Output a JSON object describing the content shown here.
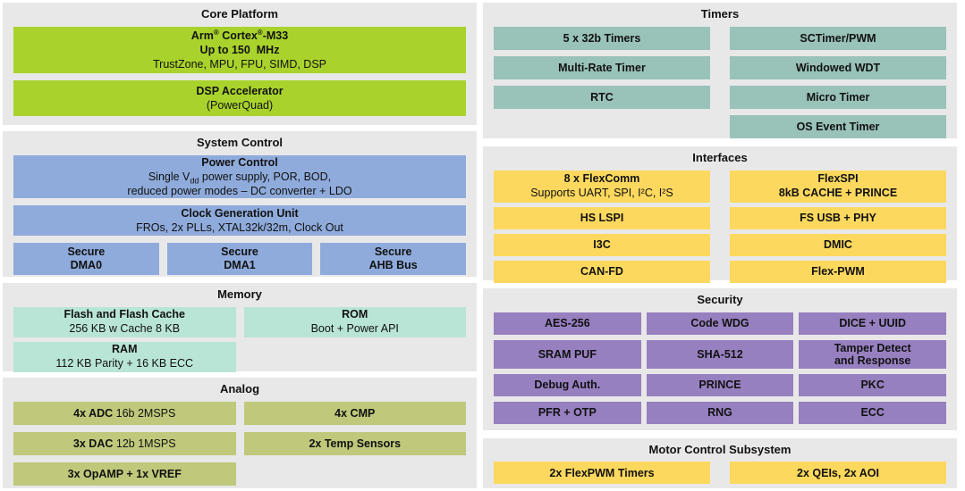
{
  "colors": {
    "page_bg": "#ffffff",
    "section_bg": "#e8e8e8",
    "text": "#111111",
    "green": "#a9d32c",
    "blue": "#8fabdb",
    "mint": "#b9e5d6",
    "teal": "#99c2b9",
    "yellow": "#fcd85e",
    "purple": "#9780c0",
    "olive": "#c0c87b"
  },
  "core_platform": {
    "title": "Core Platform",
    "cpu": {
      "l1_a": "Arm",
      "l1_r1": "®",
      "l1_b": " Cortex",
      "l1_r2": "®",
      "l1_c": "-M33",
      "line2": "Up to 150  MHz",
      "line3": "TrustZone, MPU, FPU, SIMD, DSP"
    },
    "dsp": {
      "line1": "DSP Accelerator",
      "line2": "(PowerQuad)"
    }
  },
  "system_control": {
    "title": "System Control",
    "power": {
      "line1": "Power Control",
      "line2_pre": "Single V",
      "line2_sub": "dd",
      "line2_post": " power supply, POR, BOD,",
      "line3": "reduced power modes – DC converter + LDO"
    },
    "clock": {
      "line1": "Clock Generation Unit",
      "line2": "FROs, 2x PLLs, XTAL32k/32m, Clock Out"
    },
    "dma0": {
      "line1": "Secure",
      "line2": "DMA0"
    },
    "dma1": {
      "line1": "Secure",
      "line2": "DMA1"
    },
    "ahb": {
      "line1": "Secure",
      "line2": "AHB Bus"
    }
  },
  "memory": {
    "title": "Memory",
    "flash": {
      "line1": "Flash and Flash Cache",
      "line2": "256 KB w Cache 8 KB"
    },
    "rom": {
      "line1": "ROM",
      "line2": "Boot + Power API"
    },
    "ram": {
      "line1": "RAM",
      "line2": "112 KB Parity + 16 KB ECC"
    }
  },
  "analog": {
    "title": "Analog",
    "adc": {
      "bold": "4x ADC",
      "rest": " 16b 2MSPS"
    },
    "cmp": {
      "bold": "4x CMP",
      "rest": ""
    },
    "dac": {
      "bold": "3x DAC",
      "rest": " 12b 1MSPS"
    },
    "temp": {
      "bold": "2x Temp Sensors",
      "rest": ""
    },
    "opamp": {
      "bold": "3x OpAMP + 1x VREF",
      "rest": ""
    }
  },
  "timers": {
    "title": "Timers",
    "col1": [
      "5 x 32b Timers",
      "Multi-Rate Timer",
      "RTC"
    ],
    "col2": [
      "SCTimer/PWM",
      "Windowed WDT",
      "Micro Timer",
      "OS Event Timer"
    ]
  },
  "interfaces": {
    "title": "Interfaces",
    "flexcomm": {
      "line1": "8 x FlexComm",
      "line2": "Supports UART, SPI, I²C, I²S"
    },
    "flexspi": {
      "line1": "FlexSPI",
      "line2": "8kB CACHE + PRINCE"
    },
    "hs_lspi": "HS LSPI",
    "fs_usb": "FS USB + PHY",
    "i3c": "I3C",
    "dmic": "DMIC",
    "can_fd": "CAN-FD",
    "flex_pwm": "Flex-PWM"
  },
  "security": {
    "title": "Security",
    "cells": [
      {
        "line1": "AES-256",
        "line2": ""
      },
      {
        "line1": "Code WDG",
        "line2": ""
      },
      {
        "line1": "DICE + UUID",
        "line2": ""
      },
      {
        "line1": "SRAM PUF",
        "line2": ""
      },
      {
        "line1": "SHA-512",
        "line2": ""
      },
      {
        "line1": "Tamper Detect",
        "line2": "and Response"
      },
      {
        "line1": "Debug Auth.",
        "line2": ""
      },
      {
        "line1": "PRINCE",
        "line2": ""
      },
      {
        "line1": "PKC",
        "line2": ""
      },
      {
        "line1": "PFR + OTP",
        "line2": ""
      },
      {
        "line1": "RNG",
        "line2": ""
      },
      {
        "line1": "ECC",
        "line2": ""
      }
    ]
  },
  "motor": {
    "title": "Motor Control Subsystem",
    "blocks": [
      "2x FlexPWM Timers",
      "2x QEIs, 2x AOI"
    ]
  }
}
